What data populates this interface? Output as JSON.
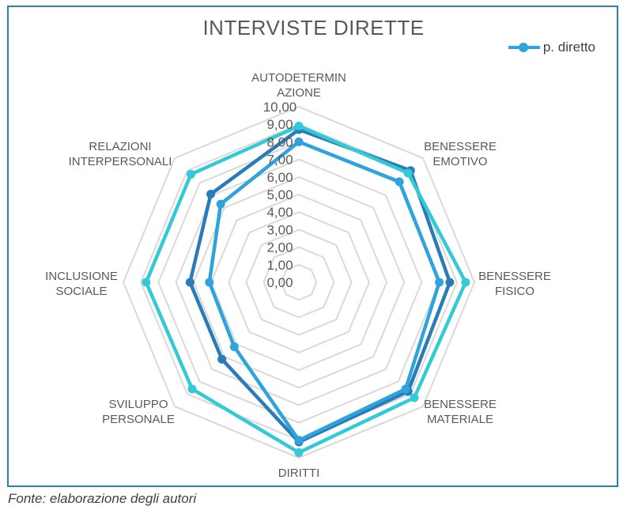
{
  "chart_data": {
    "type": "radar",
    "title": "INTERVISTE DIRETTE",
    "axes": [
      "AUTODETERMIN AZIONE",
      "BENESSERE EMOTIVO",
      "BENESSERE FISICO",
      "BENESSERE MATERIALE",
      "DIRITTI",
      "SVILUPPO PERSONALE",
      "INCLUSIONE SOCIALE",
      "RELAZIONI INTERPERSONALI"
    ],
    "axis_label_lines": [
      [
        "AUTODETERMIN",
        "AZIONE"
      ],
      [
        "BENESSERE",
        "EMOTIVO"
      ],
      [
        "BENESSERE",
        "FISICO"
      ],
      [
        "BENESSERE",
        "MATERIALE"
      ],
      [
        "DIRITTI"
      ],
      [
        "SVILUPPO",
        "PERSONALE"
      ],
      [
        "INCLUSIONE",
        "SOCIALE"
      ],
      [
        "RELAZIONI",
        "INTERPERSONALI"
      ]
    ],
    "ticks": [
      "0,00",
      "1,00",
      "2,00",
      "3,00",
      "4,00",
      "5,00",
      "6,00",
      "7,00",
      "8,00",
      "9,00",
      "10,00"
    ],
    "rlim": [
      0,
      10
    ],
    "legend_position": "top-right",
    "series": [
      {
        "name": "",
        "color": "#2b7bb9",
        "values": [
          8.7,
          9.0,
          8.6,
          8.8,
          9.1,
          6.2,
          6.2,
          7.1
        ]
      },
      {
        "name": "",
        "color": "#34c9d6",
        "values": [
          8.9,
          8.8,
          9.5,
          9.3,
          9.7,
          8.6,
          8.7,
          8.7
        ]
      },
      {
        "name": "p. diretto",
        "color": "#2ea3dc",
        "values": [
          8.0,
          8.1,
          8.0,
          8.6,
          9.0,
          5.2,
          5.1,
          6.3
        ]
      }
    ]
  },
  "legend": {
    "label": "p. diretto"
  },
  "caption": "Fonte: elaborazione degli autori"
}
